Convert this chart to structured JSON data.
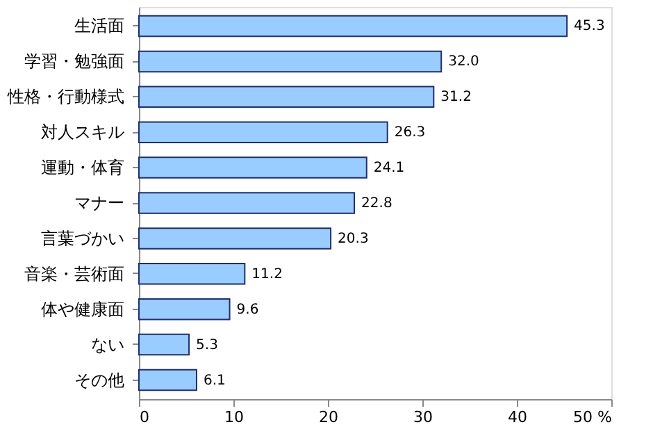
{
  "chart_data": {
    "type": "bar",
    "orientation": "horizontal",
    "categories": [
      "生活面",
      "学習・勉強面",
      "性格・行動様式",
      "対人スキル",
      "運動・体育",
      "マナー",
      "言葉づかい",
      "音楽・芸術面",
      "体や健康面",
      "ない",
      "その他"
    ],
    "values": [
      45.3,
      32.0,
      31.2,
      26.3,
      24.1,
      22.8,
      20.3,
      11.2,
      9.6,
      5.3,
      6.1
    ],
    "color": "#99ccff",
    "xlim": [
      0,
      50
    ],
    "xticks": [
      0,
      10,
      20,
      30,
      40,
      {
        "value": 50,
        "label": "50 %"
      }
    ],
    "value_labels": [
      "45.3",
      "32.0",
      "31.2",
      "26.3",
      "24.1",
      "22.8",
      "20.3",
      "11.2",
      "9.6",
      "5.3",
      "6.1"
    ],
    "grid": false
  }
}
